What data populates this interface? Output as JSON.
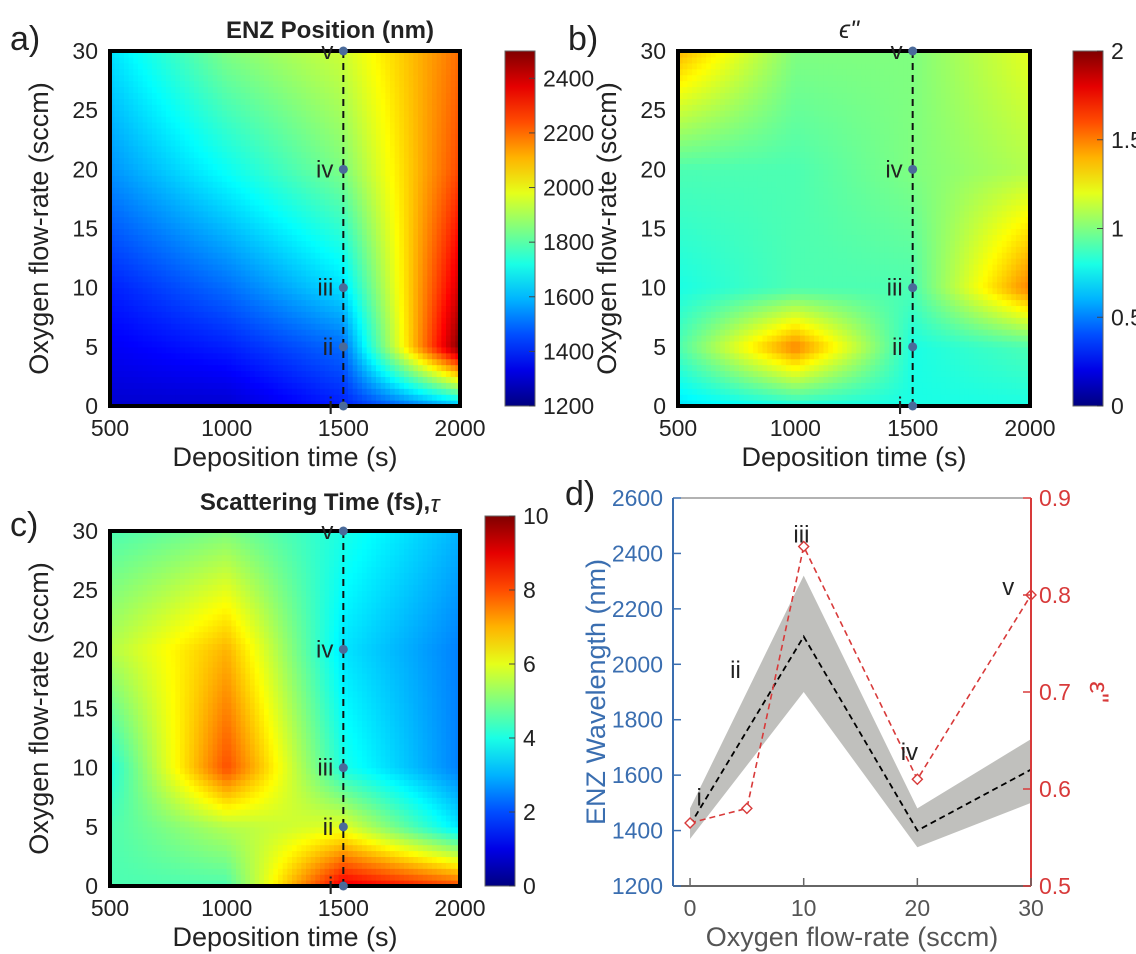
{
  "chart_data": [
    {
      "panel": "a)",
      "type": "heatmap",
      "title": "ENZ Position (nm)",
      "xlabel": "Deposition time (s)",
      "ylabel": "Oxygen flow-rate (sccm)",
      "x_ticks": [
        "500",
        "1000",
        "1500",
        "2000"
      ],
      "y_ticks": [
        "0",
        "5",
        "10",
        "15",
        "20",
        "25",
        "30"
      ],
      "xlim": [
        500,
        2000
      ],
      "ylim": [
        0,
        30
      ],
      "colorbar": {
        "min": 1200,
        "max": 2500,
        "ticks": [
          "1200",
          "1400",
          "1600",
          "1800",
          "2000",
          "2200",
          "2400"
        ]
      },
      "colormap": "jet",
      "x": [
        500,
        1000,
        1500,
        2000
      ],
      "y": [
        0,
        5,
        10,
        20,
        30
      ],
      "z": [
        [
          1300,
          1300,
          1400,
          1600
        ],
        [
          1350,
          1400,
          1500,
          2500
        ],
        [
          1400,
          1500,
          1650,
          2400
        ],
        [
          1550,
          1700,
          1850,
          2250
        ],
        [
          1650,
          1850,
          1950,
          2200
        ]
      ],
      "guide_line": {
        "x": 1500,
        "style": "dashed"
      },
      "markers": [
        {
          "label": "i",
          "x": 1500,
          "y": 0
        },
        {
          "label": "ii",
          "x": 1500,
          "y": 5
        },
        {
          "label": "iii",
          "x": 1500,
          "y": 10
        },
        {
          "label": "iv",
          "x": 1500,
          "y": 20
        },
        {
          "label": "v",
          "x": 1500,
          "y": 30
        }
      ]
    },
    {
      "panel": "b)",
      "type": "heatmap",
      "title": "ϵ\"",
      "xlabel": "Deposition time (s)",
      "ylabel": "Oxygen flow-rate (sccm)",
      "x_ticks": [
        "500",
        "1000",
        "1500",
        "2000"
      ],
      "y_ticks": [
        "0",
        "5",
        "10",
        "15",
        "20",
        "25",
        "30"
      ],
      "xlim": [
        500,
        2000
      ],
      "ylim": [
        0,
        30
      ],
      "colorbar": {
        "min": 0,
        "max": 2,
        "ticks": [
          "0",
          "0.5",
          "1",
          "1.5",
          "2"
        ]
      },
      "colormap": "jet",
      "x": [
        500,
        1000,
        1500,
        2000
      ],
      "y": [
        0,
        5,
        10,
        20,
        30
      ],
      "z": [
        [
          0.7,
          0.8,
          0.8,
          0.8
        ],
        [
          0.9,
          1.5,
          0.8,
          0.9
        ],
        [
          0.8,
          0.9,
          0.9,
          1.5
        ],
        [
          0.9,
          0.9,
          1.0,
          1.1
        ],
        [
          1.4,
          1.0,
          1.0,
          1.2
        ]
      ],
      "guide_line": {
        "x": 1500,
        "style": "dashed"
      },
      "markers": [
        {
          "label": "i",
          "x": 1500,
          "y": 0
        },
        {
          "label": "ii",
          "x": 1500,
          "y": 5
        },
        {
          "label": "iii",
          "x": 1500,
          "y": 10
        },
        {
          "label": "iv",
          "x": 1500,
          "y": 20
        },
        {
          "label": "v",
          "x": 1500,
          "y": 30
        }
      ]
    },
    {
      "panel": "c)",
      "type": "heatmap",
      "title": "Scattering Time (fs),",
      "title_symbol": "τ",
      "xlabel": "Deposition time (s)",
      "ylabel": "Oxygen flow-rate (sccm)",
      "x_ticks": [
        "500",
        "1000",
        "1500",
        "2000"
      ],
      "y_ticks": [
        "0",
        "5",
        "10",
        "15",
        "20",
        "25",
        "30"
      ],
      "xlim": [
        500,
        2000
      ],
      "ylim": [
        0,
        30
      ],
      "colorbar": {
        "min": 0,
        "max": 10,
        "ticks": [
          "0",
          "2",
          "4",
          "6",
          "8",
          "10"
        ]
      },
      "colormap": "jet",
      "x": [
        500,
        1000,
        1500,
        2000
      ],
      "y": [
        0,
        5,
        10,
        20,
        30
      ],
      "z": [
        [
          4.5,
          4.5,
          9.0,
          8.0
        ],
        [
          4.5,
          5.5,
          6.0,
          3.5
        ],
        [
          4.0,
          8.0,
          4.0,
          2.5
        ],
        [
          5.5,
          7.0,
          3.5,
          2.5
        ],
        [
          4.5,
          5.0,
          4.0,
          3.0
        ]
      ],
      "guide_line": {
        "x": 1500,
        "style": "dashed"
      },
      "markers": [
        {
          "label": "i",
          "x": 1500,
          "y": 0
        },
        {
          "label": "ii",
          "x": 1500,
          "y": 5
        },
        {
          "label": "iii",
          "x": 1500,
          "y": 10
        },
        {
          "label": "iv",
          "x": 1500,
          "y": 20
        },
        {
          "label": "v",
          "x": 1500,
          "y": 30
        }
      ]
    },
    {
      "panel": "d)",
      "type": "line",
      "xlabel": "Oxygen flow-rate (sccm)",
      "ylabel_left": "ENZ Wavelength (nm)",
      "ylabel_right": "ε\"",
      "x_ticks": [
        "0",
        "10",
        "20",
        "30"
      ],
      "y_left_ticks": [
        "1200",
        "1400",
        "1600",
        "1800",
        "2000",
        "2200",
        "2400",
        "2600"
      ],
      "y_right_ticks": [
        "0.5",
        "0.6",
        "0.7",
        "0.8",
        "0.9"
      ],
      "xlim": [
        -1.5,
        30
      ],
      "ylim_left": [
        1200,
        2600
      ],
      "ylim_right": [
        0.5,
        0.9
      ],
      "left_axis_color": "#3a6eb0",
      "right_axis_color": "#d83a3a",
      "series": [
        {
          "axis": "left",
          "x": [
            0,
            10,
            20,
            30
          ],
          "values": [
            1420,
            2100,
            1400,
            1620
          ],
          "band_low": [
            1370,
            1900,
            1340,
            1500
          ],
          "band_high": [
            1480,
            2320,
            1480,
            1730
          ],
          "color": "#000000",
          "style": "dashed"
        },
        {
          "axis": "right",
          "x": [
            0,
            5,
            10,
            20,
            30
          ],
          "values": [
            0.565,
            0.58,
            0.85,
            0.61,
            0.8
          ],
          "color": "#d83a3a",
          "style": "dashed",
          "marker": "diamond"
        }
      ],
      "annotations": [
        {
          "label": "i",
          "x": 0.8,
          "y": 1490
        },
        {
          "label": "ii",
          "x": 4,
          "y": 1950
        },
        {
          "label": "iii",
          "x": 9.8,
          "y": 2440
        },
        {
          "label": "iv",
          "x": 19.3,
          "y": 1655
        },
        {
          "label": "v",
          "x": 28,
          "y": 2250
        }
      ]
    }
  ]
}
